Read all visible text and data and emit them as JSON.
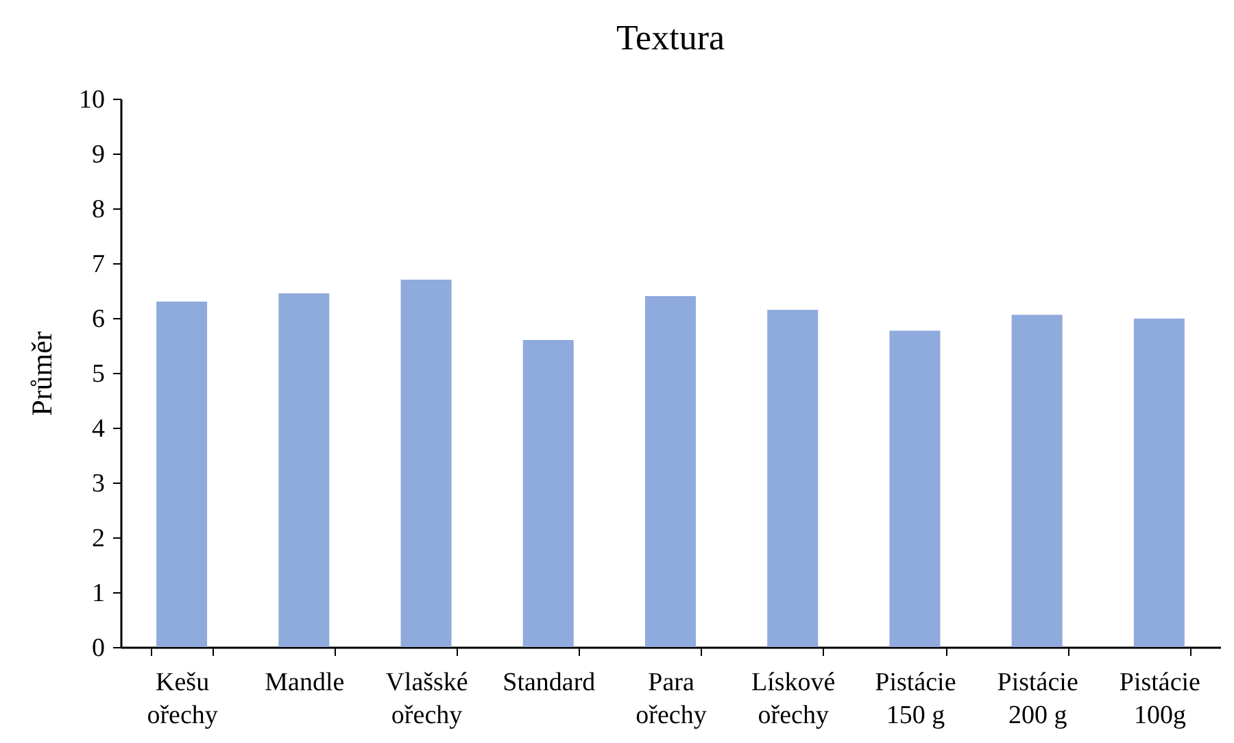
{
  "chart_data": {
    "type": "bar",
    "title": "Textura",
    "ylabel": "Průměr",
    "categories": [
      "Kešu ořechy",
      "Mandle",
      "Vlašské ořechy",
      "Standard",
      "Para ořechy",
      "Lískové ořechy",
      "Pistácie 150 g",
      "Pistácie 200 g",
      "Pistácie 100g"
    ],
    "values": [
      6.3,
      6.45,
      6.7,
      5.6,
      6.4,
      6.15,
      5.77,
      6.06,
      5.99
    ],
    "color": "#8faadc",
    "ylim": [
      0,
      10
    ],
    "yticks": [
      0,
      1,
      2,
      3,
      4,
      5,
      6,
      7,
      8,
      9,
      10
    ],
    "grid": false
  }
}
